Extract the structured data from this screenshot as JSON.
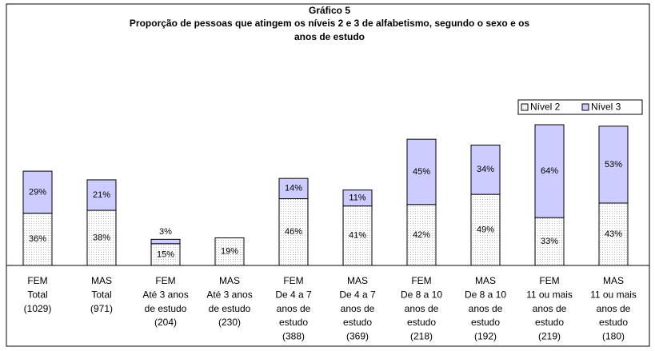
{
  "chart_data": {
    "type": "stacked_bar",
    "title": "Gráfico 5",
    "subtitle": [
      "Proporção de pessoas que atingem os níveis 2 e 3 de alfabetismo, segundo o sexo e os",
      "anos de estudo"
    ],
    "categories": [
      [
        "FEM",
        "Total",
        "(1029)"
      ],
      [
        "MAS",
        "Total",
        "(971)"
      ],
      [
        "FEM",
        "Até 3 anos",
        "de estudo",
        "(204)"
      ],
      [
        "MAS",
        "Até 3 anos",
        "de estudo",
        "(230)"
      ],
      [
        "FEM",
        "De 4 a 7",
        "anos de",
        "estudo",
        "(388)"
      ],
      [
        "MAS",
        "De 4 a 7",
        "anos de",
        "estudo",
        "(369)"
      ],
      [
        "FEM",
        "De 8 a 10",
        "anos de",
        "estudo",
        "(218)"
      ],
      [
        "MAS",
        "De 8 a 10",
        "anos de",
        "estudo",
        "(192)"
      ],
      [
        "FEM",
        "11 ou mais",
        "anos de",
        "estudo",
        "(219)"
      ],
      [
        "MAS",
        "11 ou mais",
        "anos de",
        "estudo",
        "(180)"
      ]
    ],
    "series": [
      {
        "name": "Nível 2",
        "color": "#ffffff",
        "values": [
          36,
          38,
          15,
          19,
          46,
          41,
          42,
          49,
          33,
          43
        ],
        "value_labels": [
          "36%",
          "38%",
          "15%",
          "19%",
          "46%",
          "41%",
          "42%",
          "49%",
          "33%",
          "43%"
        ]
      },
      {
        "name": "Nível 3",
        "color": "#ccccff",
        "values": [
          29,
          21,
          3,
          null,
          14,
          11,
          45,
          34,
          64,
          53
        ],
        "value_labels": [
          "29%",
          "21%",
          "3%",
          null,
          "14%",
          "11%",
          "45%",
          "34%",
          "64%",
          "53%"
        ]
      }
    ],
    "legend": "top-right"
  }
}
